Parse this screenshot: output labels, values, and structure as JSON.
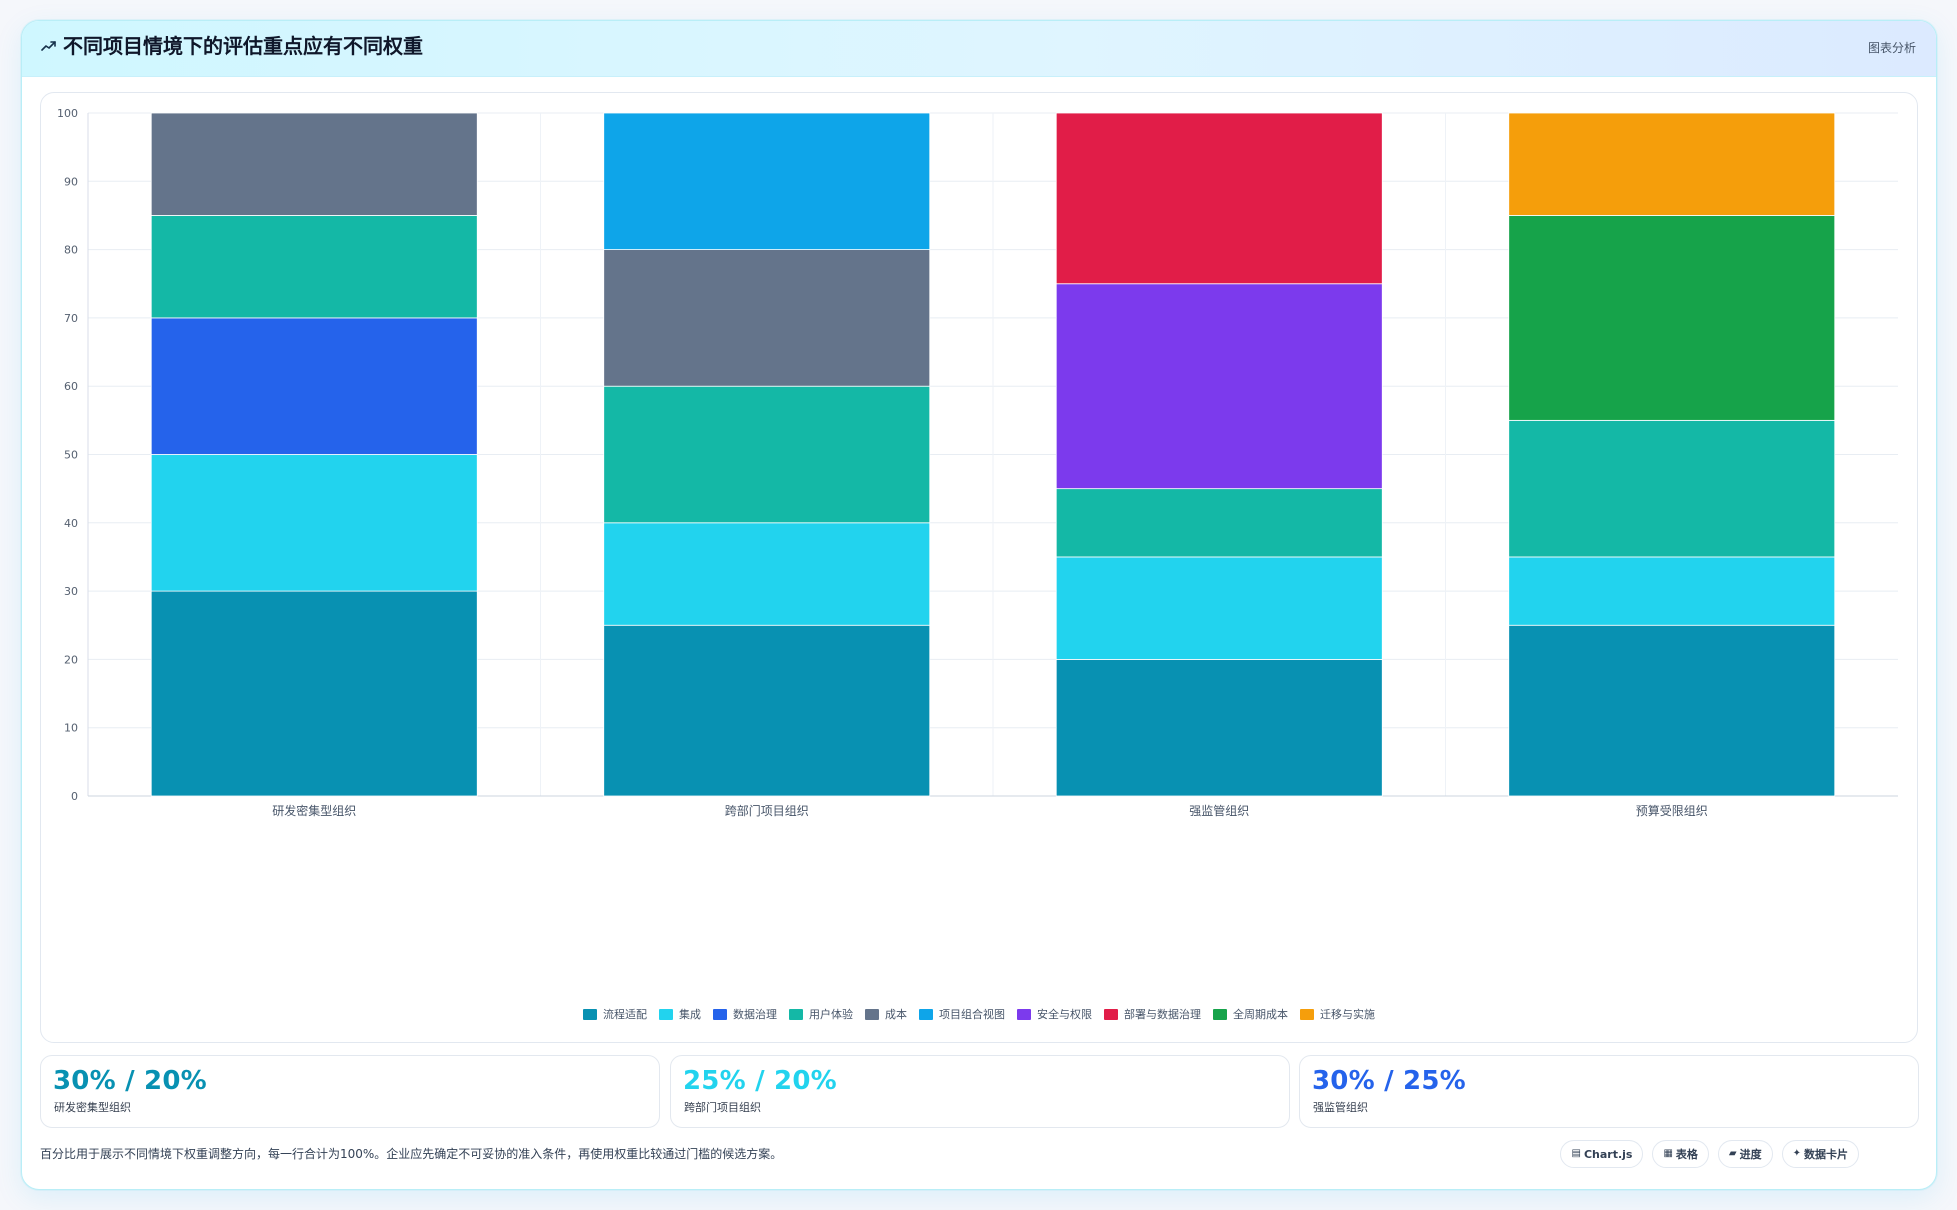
{
  "header": {
    "title": "不同项目情境下的评估重点应有不同权重",
    "action_label": "图表分析",
    "icon": "line-chart-icon"
  },
  "chart_data": {
    "type": "bar",
    "stacked": true,
    "title": "",
    "xlabel": "",
    "ylabel": "",
    "ylim": [
      0,
      100
    ],
    "yticks": [
      0,
      10,
      20,
      30,
      40,
      50,
      60,
      70,
      80,
      90,
      100
    ],
    "categories": [
      "研发密集型组织",
      "跨部门项目组织",
      "强监管组织",
      "预算受限组织"
    ],
    "legend_position": "bottom",
    "grid": true,
    "series": [
      {
        "name": "流程适配",
        "color": "#0891b2",
        "values": [
          30,
          25,
          20,
          25
        ]
      },
      {
        "name": "集成",
        "color": "#22d3ee",
        "values": [
          20,
          15,
          15,
          10
        ]
      },
      {
        "name": "数据治理",
        "color": "#2563eb",
        "values": [
          20,
          0,
          0,
          0
        ]
      },
      {
        "name": "用户体验",
        "color": "#14b8a6",
        "values": [
          15,
          20,
          10,
          20
        ]
      },
      {
        "name": "成本",
        "color": "#64748b",
        "values": [
          15,
          20,
          0,
          0
        ]
      },
      {
        "name": "项目组合视图",
        "color": "#0ea5e9",
        "values": [
          0,
          20,
          0,
          0
        ]
      },
      {
        "name": "安全与权限",
        "color": "#7c3aed",
        "values": [
          0,
          0,
          30,
          0
        ]
      },
      {
        "name": "部署与数据治理",
        "color": "#e11d48",
        "values": [
          0,
          0,
          25,
          0
        ]
      },
      {
        "name": "全周期成本",
        "color": "#16a34a",
        "values": [
          0,
          0,
          0,
          30
        ]
      },
      {
        "name": "迁移与实施",
        "color": "#f59e0b",
        "values": [
          0,
          0,
          0,
          15
        ]
      }
    ]
  },
  "summary_cards": [
    {
      "value": "30% / 20%",
      "label": "研发密集型组织",
      "color": "#0891b2"
    },
    {
      "value": "25% / 20%",
      "label": "跨部门项目组织",
      "color": "#22d3ee"
    },
    {
      "value": "30% / 25%",
      "label": "强监管组织",
      "color": "#2563eb"
    }
  ],
  "footer": {
    "note": "百分比用于展示不同情境下权重调整方向，每一行合计为100%。企业应先确定不可妥协的准入条件，再使用权重比较通过门槛的候选方案。"
  },
  "tags": [
    {
      "label": "Chart.js",
      "icon": "chart-icon"
    },
    {
      "label": "表格",
      "icon": "table-icon"
    },
    {
      "label": "进度",
      "icon": "progress-icon"
    },
    {
      "label": "数据卡片",
      "icon": "sparkle-icon"
    }
  ]
}
